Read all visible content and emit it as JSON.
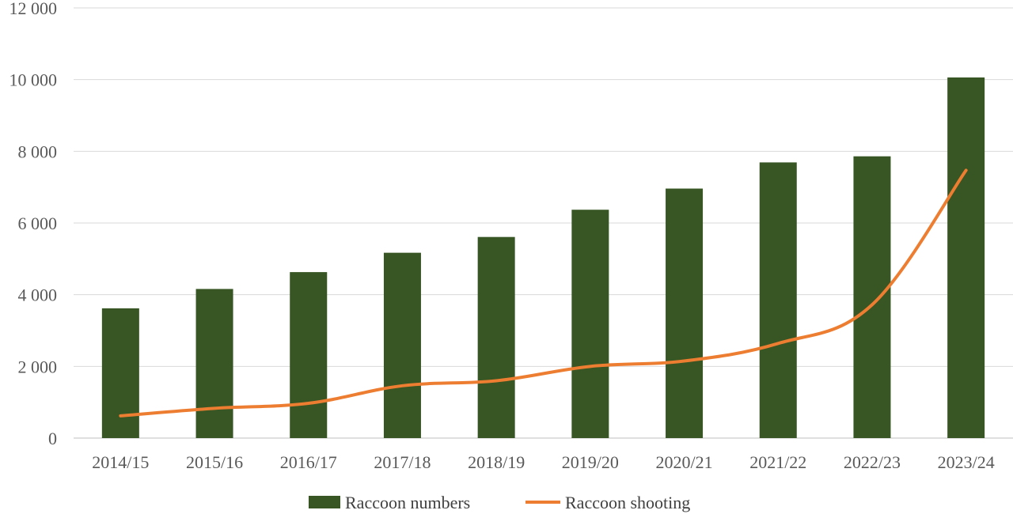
{
  "chart_data": {
    "type": "bar",
    "title": "",
    "xlabel": "",
    "ylabel": "",
    "categories": [
      "2014/15",
      "2015/16",
      "2016/17",
      "2017/18",
      "2018/19",
      "2019/20",
      "2020/21",
      "2021/22",
      "2022/23",
      "2023/24"
    ],
    "series": [
      {
        "name": "Raccoon numbers",
        "type": "bar",
        "color": "#375623",
        "values": [
          3620,
          4160,
          4630,
          5170,
          5610,
          6370,
          6960,
          7690,
          7860,
          10060
        ]
      },
      {
        "name": "Raccoon shooting",
        "type": "line",
        "color": "#ED7D31",
        "values": [
          620,
          830,
          970,
          1460,
          1600,
          2000,
          2150,
          2640,
          3720,
          7470
        ]
      }
    ],
    "ylim": [
      0,
      12000
    ],
    "yticks": [
      0,
      2000,
      4000,
      6000,
      8000,
      10000,
      12000
    ],
    "ytick_labels": [
      "0",
      "2 000",
      "4 000",
      "6 000",
      "8 000",
      "10 000",
      "12 000"
    ],
    "grid": true,
    "legend_position": "bottom"
  }
}
